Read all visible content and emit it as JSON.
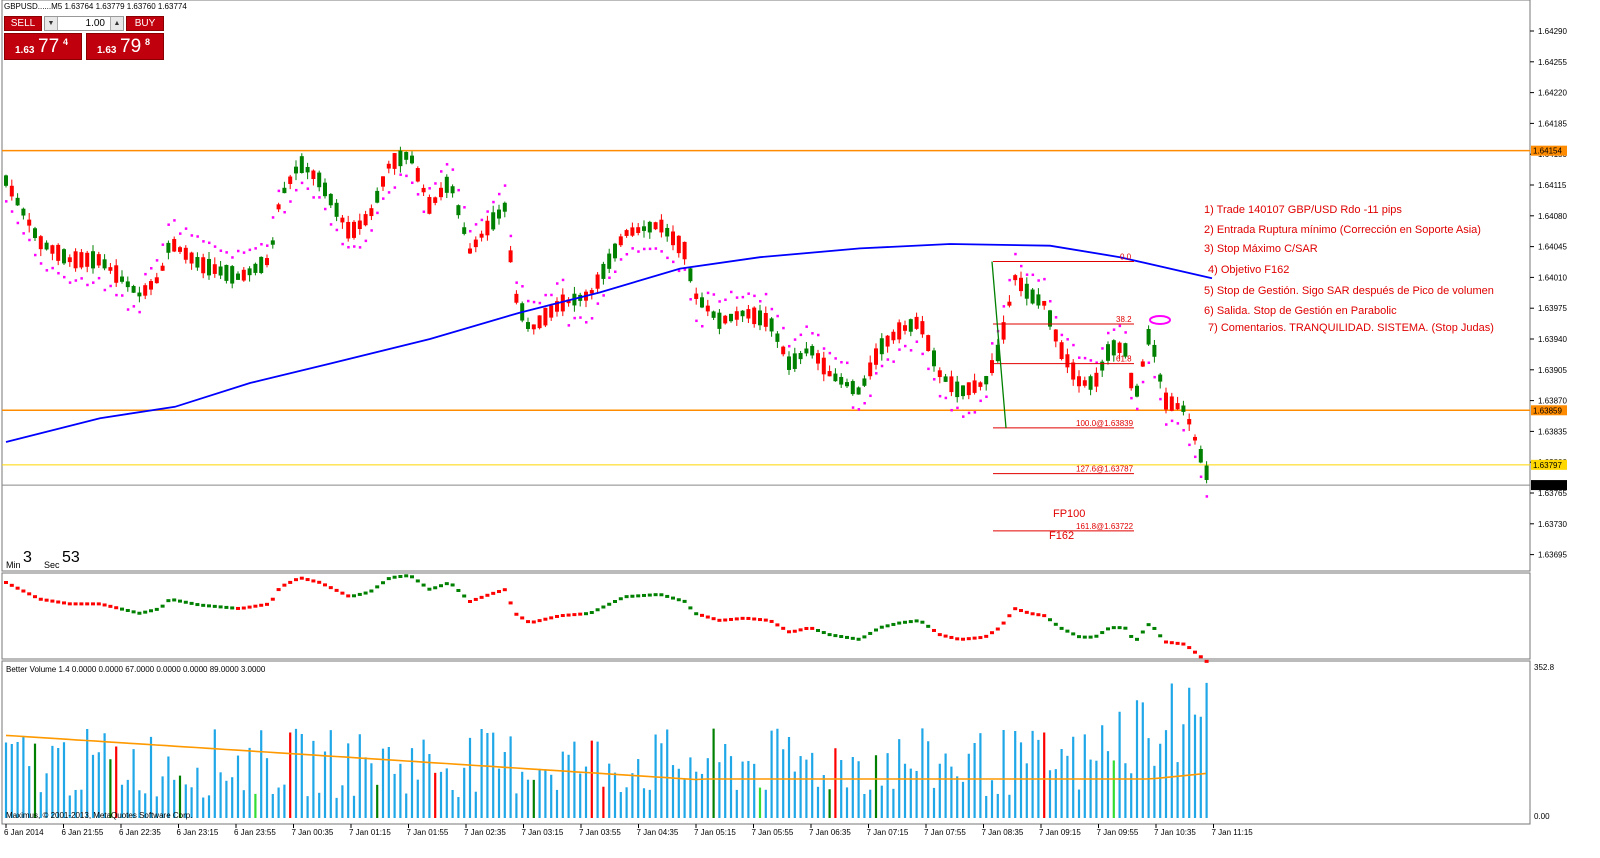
{
  "symbol_header": "GBPUSD......M5  1.63764 1.63779 1.63760 1.63774",
  "trade_panel": {
    "sell_label": "SELL",
    "buy_label": "BUY",
    "lot": "1.00",
    "sell_quote": {
      "small": "1.63",
      "big": "77",
      "sup": "4"
    },
    "buy_quote": {
      "small": "1.63",
      "big": "79",
      "sup": "8"
    }
  },
  "timer": {
    "min_label": "Min",
    "min_value": "3",
    "sec_label": "Sec",
    "sec_value": "53"
  },
  "price_axis": {
    "ticks": [
      "1.64290",
      "1.64255",
      "1.64220",
      "1.64185",
      "1.64150",
      "1.64115",
      "1.64080",
      "1.64045",
      "1.64010",
      "1.63975",
      "1.63940",
      "1.63905",
      "1.63870",
      "1.63835",
      "1.63800",
      "1.63765",
      "1.63730",
      "1.63695"
    ],
    "tags": [
      {
        "text": "1.64154",
        "color": "#ff8c00"
      },
      {
        "text": "1.63859",
        "color": "#ff8c00"
      },
      {
        "text": "1.63797",
        "color": "#ffd700"
      },
      {
        "text": "1.63774",
        "color": "#000000"
      }
    ]
  },
  "time_axis": [
    "6 Jan 2014",
    "6 Jan 21:55",
    "6 Jan 22:35",
    "6 Jan 23:15",
    "6 Jan 23:55",
    "7 Jan 00:35",
    "7 Jan 01:15",
    "7 Jan 01:55",
    "7 Jan 02:35",
    "7 Jan 03:15",
    "7 Jan 03:55",
    "7 Jan 04:35",
    "7 Jan 05:15",
    "7 Jan 05:55",
    "7 Jan 06:35",
    "7 Jan 07:15",
    "7 Jan 07:55",
    "7 Jan 08:35",
    "7 Jan 09:15",
    "7 Jan 09:55",
    "7 Jan 10:35",
    "7 Jan 11:15"
  ],
  "annotations": [
    "1) Trade 140107 GBP/USD Rdo -11 pips",
    "2) Entrada Ruptura mínimo (Corrección en Soporte Asia)",
    "3) Stop Máximo C/SAR",
    "4) Objetivo F162",
    "5) Stop de Gestión. Sigo SAR después de Pico de volumen",
    "6) Salida. Stop de Gestión en Parabolic",
    "7) Comentarios. TRANQUILIDAD. SISTEMA. (Stop Judas)"
  ],
  "fib_labels": [
    "0.0",
    "38.2",
    "61.8",
    "100.0@1.63839",
    "127.6@1.63787",
    "161.8@1.63722"
  ],
  "fp_labels": {
    "fp100": "FP100",
    "f162": "F162"
  },
  "volume_indicator": {
    "title": "Better Volume 1.4 0.0000 0.0000 67.0000 0.0000 0.0000 89.0000 3.0000",
    "scale_top": "352.8",
    "scale_bottom": "0.00"
  },
  "copyright": "Maximus, © 2001-2013, MetaQuotes Software Corp.",
  "colors": {
    "bull": "#008000",
    "bear": "#ff0000",
    "sar": "#ff00ff",
    "ma": "#0000ff",
    "support": "#ff8c00",
    "target": "#ffd700",
    "annotation": "#e00000",
    "vol_blue": "#1fa7e8",
    "vol_avg": "#ff9900"
  },
  "chart_data": {
    "type": "candlestick",
    "symbol": "GBPUSD",
    "timeframe": "M5",
    "ylim": [
      1.6368,
      1.6431
    ],
    "horizontal_levels": [
      1.64154,
      1.63859,
      1.63797,
      1.63774
    ],
    "fib_levels": {
      "0.0": 1.64028,
      "38.2": 1.63957,
      "61.8": 1.63912,
      "100.0": 1.63839,
      "127.6": 1.63787,
      "161.8": 1.63722
    },
    "last_price": 1.63774
  }
}
